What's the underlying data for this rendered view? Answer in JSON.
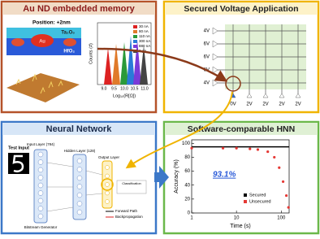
{
  "panels": {
    "memory": {
      "title": "Au ND embedded memory",
      "position": "Position: +2nm",
      "layers": [
        "Ta₂O₅",
        "Au",
        "HfO₂"
      ],
      "legend": [
        "30 nA",
        "80 nA",
        "110 nA",
        "300 nA",
        "880 nA",
        "2 µA"
      ],
      "y_label": "Counts (#)",
      "x_label": "Log₁₀(R[Ω])",
      "x_ticks": [
        "9.0",
        "9.5",
        "10.0",
        "10.5",
        "11.0"
      ]
    },
    "voltage": {
      "title": "Secured Voltage Application",
      "row_labels": [
        "4V",
        "6V",
        "6V",
        "6V",
        "4V"
      ],
      "col_labels": [
        "0V",
        "2V",
        "2V",
        "2V",
        "2V"
      ]
    },
    "network": {
      "title": "Neural Network",
      "test_input": "Test Input",
      "input_layer": "Input Layer (784)",
      "hidden_layer": "Hidden Layer (128)",
      "output_layer": "Output Layer",
      "generator": "Bitstream Generator",
      "classification": "Classification",
      "forward": "Forward Path",
      "backprop": "Backpropagation"
    },
    "hnn": {
      "title": "Software-comparable HNN",
      "y_label": "Accuracy (%)",
      "x_label": "Time (s)",
      "annotation": "93.1%",
      "xlim": [
        1,
        150
      ],
      "ylim": [
        0,
        105
      ],
      "xticks": [
        1,
        10,
        100
      ],
      "yticks": [
        0,
        20,
        40,
        60,
        80,
        100
      ],
      "log_x": true,
      "series": [
        {
          "name": "Secured",
          "color": "#000000",
          "x": [
            1,
            150
          ],
          "values": [
            95,
            95
          ]
        },
        {
          "name": "Unsecured",
          "color": "#e53935",
          "x": [
            1,
            5,
            10,
            20,
            30,
            50,
            70,
            90,
            110,
            130,
            145
          ],
          "values": [
            93,
            93,
            93,
            92,
            91,
            88,
            80,
            65,
            45,
            25,
            8
          ]
        }
      ]
    }
  }
}
